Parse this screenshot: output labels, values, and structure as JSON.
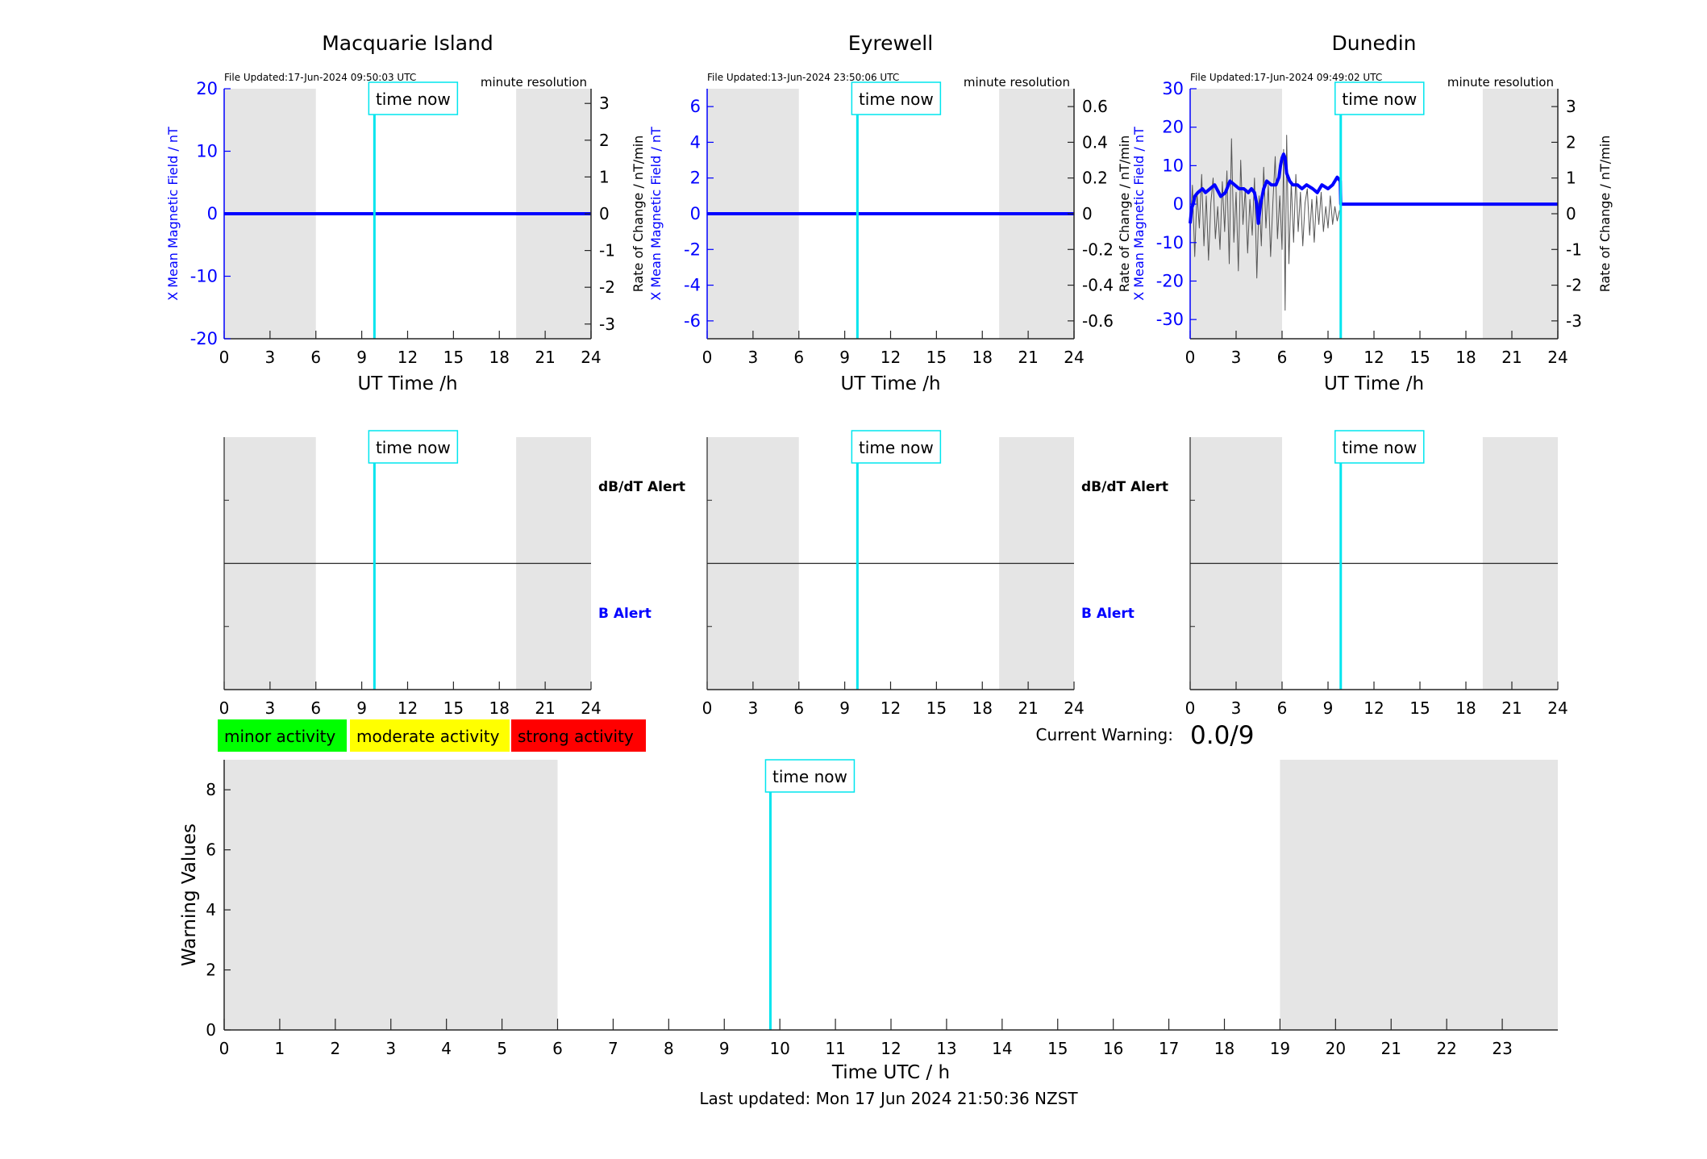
{
  "last_updated": "Last updated: Mon 17 Jun 2024 21:50:36 NZST",
  "current_warning": {
    "label": "Current Warning:",
    "value": "0.0/9"
  },
  "legend": [
    {
      "label": "minor activity",
      "color": "#00ff00"
    },
    {
      "label": "moderate activity",
      "color": "#ffff00"
    },
    {
      "label": "strong activity",
      "color": "#ff0000"
    }
  ],
  "time_now_label": "time now",
  "colors": {
    "field": "#0000ff",
    "time_now": "#00e5ee",
    "night": "#e5e5e5",
    "rate": "#555555"
  },
  "chart_data": [
    {
      "type": "line",
      "title": "Macquarie Island",
      "file_updated": "File Updated:17-Jun-2024 09:50:03 UTC",
      "resolution": "minute resolution",
      "xlabel": "UT Time /h",
      "ylabel_left": "X Mean Magnetic Field / nT",
      "ylabel_right": "Rate of Change / nT/min",
      "xlim": [
        0,
        24
      ],
      "ylim_left": [
        -20,
        20
      ],
      "ylim_right": [
        -3.4,
        3.4
      ],
      "xticks": [
        "0",
        "3",
        "6",
        "9",
        "12",
        "15",
        "18",
        "21",
        "24"
      ],
      "yticks_left": [
        "-20",
        "-10",
        "0",
        "10",
        "20"
      ],
      "yticks_right": [
        "-3",
        "-2",
        "-1",
        "0",
        "1",
        "2",
        "3"
      ],
      "night_bands": [
        [
          0,
          6
        ],
        [
          19.1,
          24
        ]
      ],
      "time_now": 9.83,
      "series": [
        {
          "axis": "left",
          "x": [
            0,
            24
          ],
          "values": [
            0,
            0
          ]
        }
      ]
    },
    {
      "type": "line",
      "title": "Eyrewell",
      "file_updated": "File Updated:13-Jun-2024 23:50:06 UTC",
      "resolution": "minute resolution",
      "xlabel": "UT Time /h",
      "ylabel_left": "X Mean Magnetic Field / nT",
      "ylabel_right": "",
      "xlim": [
        0,
        24
      ],
      "ylim_left": [
        -7,
        7
      ],
      "ylim_right": [
        -0.7,
        0.7
      ],
      "xticks": [
        "0",
        "3",
        "6",
        "9",
        "12",
        "15",
        "18",
        "21",
        "24"
      ],
      "yticks_left": [
        "-6",
        "-4",
        "-2",
        "0",
        "2",
        "4",
        "6"
      ],
      "yticks_right": [
        "-0.6",
        "-0.4",
        "-0.2",
        "0",
        "0.2",
        "0.4",
        "0.6"
      ],
      "night_bands": [
        [
          0,
          6
        ],
        [
          19.1,
          24
        ]
      ],
      "time_now": 9.83,
      "series": [
        {
          "axis": "left",
          "x": [
            0,
            24
          ],
          "values": [
            0,
            0
          ]
        }
      ]
    },
    {
      "type": "line",
      "title": "Dunedin",
      "file_updated": "File Updated:17-Jun-2024 09:49:02 UTC",
      "resolution": "minute resolution",
      "xlabel": "UT Time /h",
      "ylabel_left": "X Mean Magnetic Field / nT",
      "ylabel_left2": "Rate of Change / nT/min",
      "ylabel_right": "Rate of Change / nT/min",
      "xlim": [
        0,
        24
      ],
      "ylim_left": [
        -35,
        30
      ],
      "ylim_right": [
        -3.5,
        3.5
      ],
      "xticks": [
        "0",
        "3",
        "6",
        "9",
        "12",
        "15",
        "18",
        "21",
        "24"
      ],
      "yticks_left": [
        "-30",
        "-20",
        "-10",
        "0",
        "10",
        "20",
        "30"
      ],
      "yticks_right": [
        "-3",
        "-2",
        "-1",
        "0",
        "1",
        "2",
        "3"
      ],
      "night_bands": [
        [
          0,
          6
        ],
        [
          19.1,
          24
        ]
      ],
      "time_now": 9.83,
      "series": [
        {
          "axis": "left",
          "x": [
            0,
            0.1,
            0.2,
            0.3,
            0.5,
            0.8,
            1.0,
            1.3,
            1.6,
            2.0,
            2.3,
            2.6,
            2.9,
            3.2,
            3.5,
            3.8,
            4.0,
            4.2,
            4.35,
            4.45,
            4.6,
            4.8,
            5.0,
            5.3,
            5.6,
            5.8,
            5.9,
            6.0,
            6.1,
            6.2,
            6.3,
            6.5,
            6.7,
            7.0,
            7.3,
            7.6,
            8.0,
            8.3,
            8.6,
            9.0,
            9.3,
            9.6,
            9.8,
            9.83,
            10,
            12,
            15,
            18,
            21,
            24
          ],
          "values": [
            -5,
            -1,
            0,
            2,
            3,
            4,
            3,
            4,
            5,
            2,
            3,
            6,
            5,
            4,
            4,
            3,
            4,
            3,
            0,
            -5,
            0,
            4,
            6,
            5,
            5,
            7,
            10,
            12,
            13,
            12,
            8,
            6,
            5,
            5,
            4,
            5,
            4,
            3,
            5,
            4,
            5,
            7,
            6,
            0,
            0,
            0,
            0,
            0,
            0,
            0
          ]
        },
        {
          "axis": "right",
          "x": [
            0,
            0.15,
            0.3,
            0.45,
            0.6,
            0.75,
            0.9,
            1.05,
            1.2,
            1.35,
            1.5,
            1.65,
            1.8,
            1.95,
            2.1,
            2.25,
            2.4,
            2.55,
            2.7,
            2.85,
            3.0,
            3.15,
            3.3,
            3.45,
            3.6,
            3.75,
            3.9,
            4.05,
            4.2,
            4.35,
            4.5,
            4.65,
            4.8,
            4.95,
            5.1,
            5.25,
            5.4,
            5.55,
            5.7,
            5.85,
            6.0,
            6.1,
            6.2,
            6.3,
            6.45,
            6.6,
            6.75,
            6.9,
            7.05,
            7.2,
            7.35,
            7.5,
            7.65,
            7.8,
            7.95,
            8.1,
            8.25,
            8.4,
            8.55,
            8.7,
            8.85,
            9.0,
            9.15,
            9.3,
            9.45,
            9.6,
            9.75
          ],
          "values": [
            -0.5,
            0.8,
            -1.2,
            0.6,
            -0.4,
            1.1,
            -0.9,
            0.5,
            -1.3,
            0.3,
            1.0,
            -0.7,
            0.2,
            -1.0,
            0.9,
            -0.5,
            1.2,
            -1.4,
            2.1,
            -0.8,
            0.6,
            -1.6,
            1.5,
            -0.3,
            0.7,
            -1.1,
            0.4,
            -0.6,
            1.0,
            -1.8,
            0.5,
            -0.9,
            1.3,
            -0.4,
            0.8,
            -1.2,
            0.3,
            1.6,
            -0.7,
            0.5,
            -1.0,
            1.8,
            -2.7,
            2.2,
            -1.4,
            0.9,
            -0.8,
            1.1,
            -0.5,
            0.6,
            -0.9,
            0.3,
            0.7,
            -0.6,
            0.4,
            -0.8,
            0.5,
            -0.3,
            0.6,
            -0.5,
            0.2,
            -0.4,
            0.5,
            -0.3,
            0.2,
            -0.2,
            0.1
          ]
        }
      ]
    },
    {
      "type": "line",
      "title": "",
      "right_labels": [
        "dB/dT Alert",
        "B Alert"
      ],
      "xlim": [
        0,
        24
      ],
      "xticks": [
        "0",
        "3",
        "6",
        "9",
        "12",
        "15",
        "18",
        "21",
        "24"
      ],
      "night_bands": [
        [
          0,
          6
        ],
        [
          19.1,
          24
        ]
      ],
      "time_now": 9.83
    },
    {
      "type": "line",
      "title": "",
      "right_labels": [
        "dB/dT Alert",
        "B Alert"
      ],
      "xlim": [
        0,
        24
      ],
      "xticks": [
        "0",
        "3",
        "6",
        "9",
        "12",
        "15",
        "18",
        "21",
        "24"
      ],
      "night_bands": [
        [
          0,
          6
        ],
        [
          19.1,
          24
        ]
      ],
      "time_now": 9.83
    },
    {
      "type": "line",
      "title": "",
      "right_labels": [],
      "xlim": [
        0,
        24
      ],
      "xticks": [
        "0",
        "3",
        "6",
        "9",
        "12",
        "15",
        "18",
        "21",
        "24"
      ],
      "night_bands": [
        [
          0,
          6
        ],
        [
          19.1,
          24
        ]
      ],
      "time_now": 9.83
    },
    {
      "type": "bar",
      "title": "",
      "xlabel": "Time UTC / h",
      "ylabel": "Warning Values",
      "xlim": [
        0,
        24
      ],
      "ylim": [
        0,
        9
      ],
      "xticks": [
        "0",
        "1",
        "2",
        "3",
        "4",
        "5",
        "6",
        "7",
        "8",
        "9",
        "10",
        "11",
        "12",
        "13",
        "14",
        "15",
        "16",
        "17",
        "18",
        "19",
        "20",
        "21",
        "22",
        "23"
      ],
      "yticks": [
        "0",
        "2",
        "4",
        "6",
        "8"
      ],
      "night_bands": [
        [
          0,
          6
        ],
        [
          19,
          24
        ]
      ],
      "time_now": 9.83,
      "values": []
    }
  ]
}
